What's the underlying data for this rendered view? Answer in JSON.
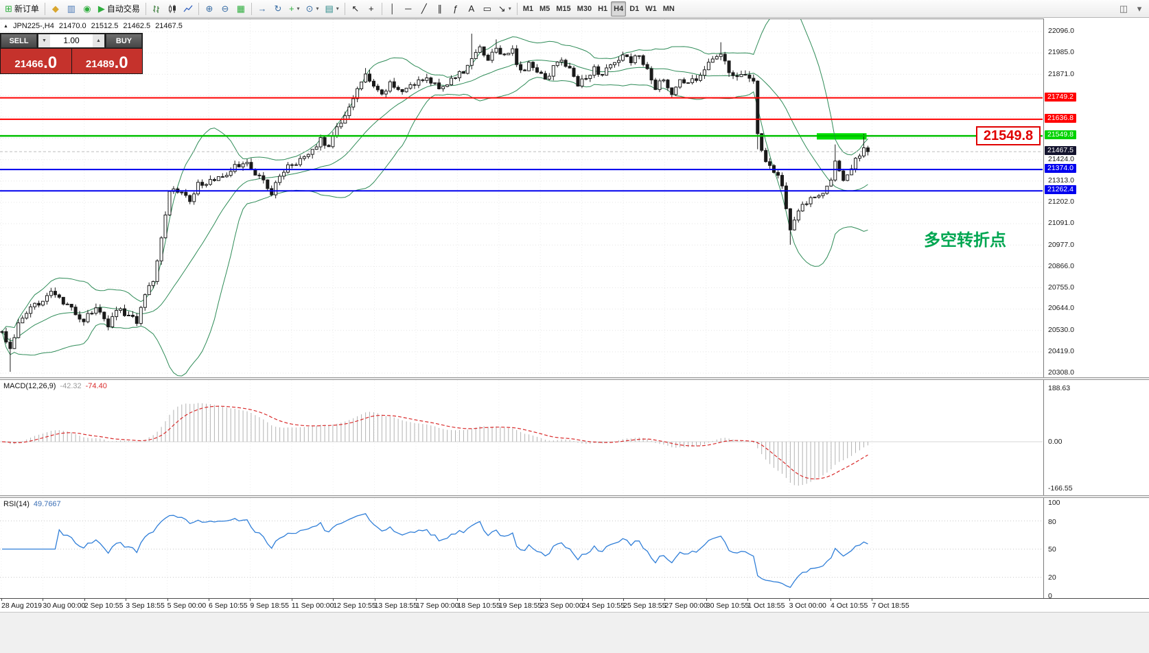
{
  "toolbar": {
    "groups": [
      {
        "items": [
          {
            "name": "new-order-button",
            "glyph": "⊞",
            "color": "#2fae3e",
            "label": "新订单"
          }
        ]
      },
      {
        "items": [
          {
            "name": "profiles-button",
            "glyph": "◆",
            "color": "#d9a62e"
          },
          {
            "name": "charts-grid-button",
            "glyph": "▥",
            "color": "#4a78b5"
          },
          {
            "name": "market-watch-button",
            "glyph": "◉",
            "color": "#2fae3e"
          },
          {
            "name": "autotrading-button",
            "glyph": "▶",
            "color": "#2fae3e",
            "label": "自动交易"
          }
        ]
      },
      {
        "items": [
          {
            "name": "bar-chart-button",
            "svg": "bars"
          },
          {
            "name": "candlestick-chart-button",
            "svg": "candles"
          },
          {
            "name": "line-chart-button",
            "svg": "line"
          }
        ]
      },
      {
        "items": [
          {
            "name": "zoom-in-button",
            "glyph": "⊕",
            "color": "#3a6ea5"
          },
          {
            "name": "zoom-out-button",
            "glyph": "⊖",
            "color": "#3a6ea5"
          },
          {
            "name": "grid-button",
            "glyph": "▦",
            "color": "#2fae3e"
          }
        ]
      },
      {
        "items": [
          {
            "name": "shift-chart-button",
            "glyph": "→",
            "color": "#3a6ea5"
          },
          {
            "name": "auto-scroll-button",
            "glyph": "↻",
            "color": "#3a6ea5"
          },
          {
            "name": "add-indicator-button",
            "glyph": "+",
            "color": "#2fae3e",
            "dropdown": true
          },
          {
            "name": "periods-button",
            "glyph": "⊙",
            "color": "#3a6ea5",
            "dropdown": true
          },
          {
            "name": "templates-button",
            "glyph": "▤",
            "color": "#2e8b8b",
            "dropdown": true
          }
        ]
      },
      {
        "items": [
          {
            "name": "cursor-button",
            "glyph": "↖",
            "color": "#222"
          },
          {
            "name": "crosshair-button",
            "glyph": "+",
            "color": "#222"
          }
        ]
      },
      {
        "items": [
          {
            "name": "vertical-line-button",
            "glyph": "│",
            "color": "#222"
          },
          {
            "name": "horizontal-line-button",
            "glyph": "─",
            "color": "#222"
          },
          {
            "name": "trendline-button",
            "glyph": "╱",
            "color": "#222"
          },
          {
            "name": "equidistant-channel-button",
            "glyph": "∥",
            "color": "#222"
          },
          {
            "name": "fibonacci-button",
            "glyph": "ƒ",
            "color": "#222"
          },
          {
            "name": "text-button",
            "glyph": "A",
            "color": "#222"
          },
          {
            "name": "text-label-button",
            "glyph": "▭",
            "color": "#222"
          },
          {
            "name": "arrows-button",
            "glyph": "↘",
            "color": "#222",
            "dropdown": true
          }
        ]
      },
      {
        "items": [
          {
            "name": "timeframe-m1-button",
            "label": "M1",
            "tf": true
          },
          {
            "name": "timeframe-m5-button",
            "label": "M5",
            "tf": true
          },
          {
            "name": "timeframe-m15-button",
            "label": "M15",
            "tf": true
          },
          {
            "name": "timeframe-m30-button",
            "label": "M30",
            "tf": true
          },
          {
            "name": "timeframe-h1-button",
            "label": "H1",
            "tf": true
          },
          {
            "name": "timeframe-h4-button",
            "label": "H4",
            "tf": true,
            "active": true
          },
          {
            "name": "timeframe-d1-button",
            "label": "D1",
            "tf": true
          },
          {
            "name": "timeframe-w1-button",
            "label": "W1",
            "tf": true
          },
          {
            "name": "timeframe-mn-button",
            "label": "MN",
            "tf": true
          }
        ]
      },
      {
        "right": true,
        "items": [
          {
            "name": "dock-button",
            "glyph": "◫",
            "color": "#666"
          },
          {
            "name": "more-tools-button",
            "glyph": "▾",
            "color": "#666"
          }
        ]
      }
    ]
  },
  "symbol_header": {
    "marker": "▲",
    "symbol": "JPN225-,H4",
    "open": "21470.0",
    "high": "21512.5",
    "low": "21462.5",
    "close": "21467.5"
  },
  "trade_widget": {
    "sell_label": "SELL",
    "buy_label": "BUY",
    "lot_size": "1.00",
    "lot_down_glyph": "▼",
    "lot_up_glyph": "▲",
    "sell_price_main": "21466",
    "sell_price_frac": ".0",
    "buy_price_main": "21489",
    "buy_price_frac": ".0",
    "price_box_color": "#c5322c"
  },
  "price_axis": {
    "ticks": [
      "22096.0",
      "21985.0",
      "21871.0",
      "21424.0",
      "21313.0",
      "21202.0",
      "21091.0",
      "20977.0",
      "20866.0",
      "20755.0",
      "20644.0",
      "20530.0",
      "20419.0",
      "20308.0"
    ],
    "line_labels": [
      {
        "value": "21749.2",
        "price": 21749.2,
        "bg": "#ff0000",
        "fg": "#ffffff"
      },
      {
        "value": "21636.8",
        "price": 21636.8,
        "bg": "#ff0000",
        "fg": "#ffffff"
      },
      {
        "value": "21549.8",
        "price": 21549.8,
        "bg": "#00d300",
        "fg": "#ffffff"
      },
      {
        "value": "21467.5",
        "price": 21467.5,
        "bg": "#14142e",
        "fg": "#ffffff"
      },
      {
        "value": "21374.0",
        "price": 21374.0,
        "bg": "#0000ee",
        "fg": "#ffffff"
      },
      {
        "value": "21262.4",
        "price": 21262.4,
        "bg": "#0000ee",
        "fg": "#ffffff"
      }
    ]
  },
  "macd": {
    "label": "MACD(12,26,9)",
    "value_main": "-42.32",
    "value_signal": "-74.40",
    "axis_labels": [
      "188.63",
      "0.00",
      "-166.55"
    ],
    "histogram_color": "#b2b2b2",
    "signal_color": "#d92b2b"
  },
  "rsi": {
    "label": "RSI(14)",
    "value": "49.7667",
    "axis_labels": [
      "100",
      "80",
      "50",
      "20",
      "0"
    ],
    "levels": [
      80,
      50,
      20
    ],
    "line_color": "#2f7ed8"
  },
  "annotation": {
    "text": "多空转折点",
    "color": "#00a651"
  },
  "callout": {
    "text": "21549.8",
    "color": "#e00000"
  },
  "chart_data": {
    "type": "candlestick",
    "symbol": "JPN225-",
    "timeframe": "H4",
    "ohlc_header": {
      "open": 21470.0,
      "high": 21512.5,
      "low": 21462.5,
      "close": 21467.5
    },
    "y_axis": {
      "min": 20308.0,
      "max": 22096.0,
      "tick_step": 111.75,
      "tick_count": 17
    },
    "x_axis_labels": [
      "28 Aug 2019",
      "30 Aug 00:00",
      "2 Sep 10:55",
      "3 Sep 18:55",
      "5 Sep 00:00",
      "6 Sep 10:55",
      "9 Sep 18:55",
      "11 Sep 00:00",
      "12 Sep 10:55",
      "13 Sep 18:55",
      "17 Sep 00:00",
      "18 Sep 10:55",
      "19 Sep 18:55",
      "23 Sep 00:00",
      "24 Sep 10:55",
      "25 Sep 18:55",
      "27 Sep 00:00",
      "30 Sep 10:55",
      "1 Oct 18:55",
      "3 Oct 00:00",
      "4 Oct 10:55",
      "7 Oct 18:55"
    ],
    "num_candles": 213,
    "close_anchors": [
      [
        0,
        20520
      ],
      [
        2,
        20440
      ],
      [
        4,
        20560
      ],
      [
        7,
        20640
      ],
      [
        10,
        20700
      ],
      [
        12,
        20740
      ],
      [
        14,
        20690
      ],
      [
        17,
        20640
      ],
      [
        20,
        20580
      ],
      [
        23,
        20660
      ],
      [
        26,
        20540
      ],
      [
        28,
        20650
      ],
      [
        31,
        20610
      ],
      [
        33,
        20580
      ],
      [
        35,
        20730
      ],
      [
        37,
        20790
      ],
      [
        39,
        21030
      ],
      [
        41,
        21270
      ],
      [
        44,
        21260
      ],
      [
        46,
        21210
      ],
      [
        48,
        21300
      ],
      [
        51,
        21310
      ],
      [
        54,
        21330
      ],
      [
        57,
        21390
      ],
      [
        60,
        21400
      ],
      [
        63,
        21340
      ],
      [
        66,
        21250
      ],
      [
        68,
        21340
      ],
      [
        70,
        21400
      ],
      [
        73,
        21420
      ],
      [
        76,
        21470
      ],
      [
        78,
        21545
      ],
      [
        80,
        21480
      ],
      [
        82,
        21590
      ],
      [
        85,
        21700
      ],
      [
        87,
        21790
      ],
      [
        89,
        21860
      ],
      [
        91,
        21800
      ],
      [
        93,
        21760
      ],
      [
        95,
        21820
      ],
      [
        98,
        21790
      ],
      [
        101,
        21820
      ],
      [
        104,
        21850
      ],
      [
        107,
        21810
      ],
      [
        110,
        21840
      ],
      [
        113,
        21890
      ],
      [
        115,
        21960
      ],
      [
        117,
        22000
      ],
      [
        119,
        21955
      ],
      [
        121,
        22010
      ],
      [
        123,
        21965
      ],
      [
        125,
        21995
      ],
      [
        127,
        21880
      ],
      [
        129,
        21925
      ],
      [
        131,
        21895
      ],
      [
        133,
        21845
      ],
      [
        135,
        21905
      ],
      [
        137,
        21950
      ],
      [
        139,
        21895
      ],
      [
        141,
        21820
      ],
      [
        143,
        21865
      ],
      [
        145,
        21900
      ],
      [
        147,
        21875
      ],
      [
        150,
        21925
      ],
      [
        152,
        21975
      ],
      [
        154,
        21945
      ],
      [
        156,
        21965
      ],
      [
        158,
        21890
      ],
      [
        160,
        21800
      ],
      [
        162,
        21845
      ],
      [
        164,
        21780
      ],
      [
        166,
        21840
      ],
      [
        168,
        21815
      ],
      [
        170,
        21855
      ],
      [
        172,
        21895
      ],
      [
        174,
        21945
      ],
      [
        176,
        21985
      ],
      [
        178,
        21895
      ],
      [
        180,
        21845
      ],
      [
        182,
        21875
      ],
      [
        184,
        21830
      ],
      [
        185,
        21560
      ],
      [
        187,
        21400
      ],
      [
        189,
        21370
      ],
      [
        191,
        21290
      ],
      [
        193,
        21060
      ],
      [
        195,
        21160
      ],
      [
        197,
        21200
      ],
      [
        199,
        21240
      ],
      [
        201,
        21260
      ],
      [
        203,
        21330
      ],
      [
        204,
        21420
      ],
      [
        206,
        21330
      ],
      [
        208,
        21390
      ],
      [
        210,
        21450
      ],
      [
        211,
        21500
      ],
      [
        212,
        21467.5
      ]
    ],
    "wick_events": [
      {
        "i": 2,
        "low": 20315
      },
      {
        "i": 39,
        "low": 20940
      },
      {
        "i": 89,
        "high": 21905
      },
      {
        "i": 115,
        "high": 22085
      },
      {
        "i": 121,
        "high": 22055
      },
      {
        "i": 176,
        "high": 22040
      },
      {
        "i": 185,
        "low": 21480
      },
      {
        "i": 193,
        "low": 20980
      },
      {
        "i": 204,
        "high": 21505
      },
      {
        "i": 211,
        "high": 21560
      }
    ],
    "noise": 16,
    "overlays": [
      {
        "name": "Bollinger Bands",
        "period": 20,
        "deviation": 2,
        "color": "#2e8b57"
      }
    ],
    "h_lines": [
      {
        "price": 21749.2,
        "color": "#ff0000",
        "width": 2
      },
      {
        "price": 21636.8,
        "color": "#ff0000",
        "width": 2
      },
      {
        "price": 21549.8,
        "color": "#00c000",
        "width": 2.5
      },
      {
        "price": 21374.0,
        "color": "#0000ee",
        "width": 2
      },
      {
        "price": 21262.4,
        "color": "#0000ee",
        "width": 2
      }
    ],
    "current_price_line": {
      "price": 21467.5,
      "color": "#bcbcbc"
    },
    "highlight_rect": {
      "from_index": 200,
      "to_index": 211,
      "price_top": 21564,
      "price_bottom": 21531,
      "color": "#00e000"
    },
    "indicators": [
      {
        "name": "MACD",
        "params": [
          12,
          26,
          9
        ],
        "current_main": -42.32,
        "current_signal": -74.4,
        "scale_min": -166.55,
        "scale_max": 188.63
      },
      {
        "name": "RSI",
        "params": [
          14
        ],
        "current": 49.7667,
        "scale_min": 0,
        "scale_max": 100,
        "levels": [
          20,
          50,
          80
        ]
      }
    ]
  }
}
